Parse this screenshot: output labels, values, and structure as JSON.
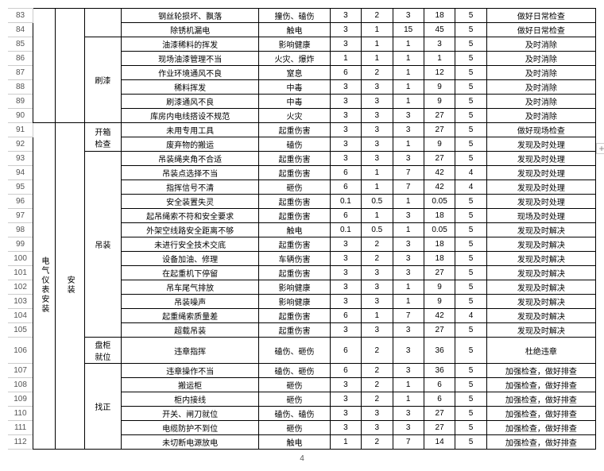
{
  "footer": "4",
  "plus": "+",
  "group1_label": "刷漆",
  "group2_main": "电气仪表安装",
  "group2_sub": "安装",
  "sub_kxjc": "开箱\n检查",
  "sub_dz": "吊装",
  "sub_pgjw": "盘柜\n就位",
  "sub_zz": "找正",
  "rows": [
    {
      "n": "83",
      "c2": "",
      "c3": "",
      "c4": "",
      "d": "钢丝轮损坏、飘落",
      "e": "撞伤、磕伤",
      "v": [
        "3",
        "2",
        "3",
        "18",
        "5"
      ],
      "a": "做好日常检查"
    },
    {
      "n": "84",
      "c2": "",
      "c3": "",
      "c4": "",
      "d": "除锈机漏电",
      "e": "触电",
      "v": [
        "3",
        "1",
        "15",
        "45",
        "5"
      ],
      "a": "做好日常检查"
    },
    {
      "n": "85",
      "c2": "",
      "c3": "",
      "c4": "",
      "d": "油漆稀料的挥发",
      "e": "影响健康",
      "v": [
        "3",
        "1",
        "1",
        "3",
        "5"
      ],
      "a": "及时消除"
    },
    {
      "n": "86",
      "c2": "",
      "c3": "",
      "c4": "",
      "d": "现场油漆管理不当",
      "e": "火灾、爆炸",
      "v": [
        "1",
        "1",
        "1",
        "1",
        "5"
      ],
      "a": "及时消除"
    },
    {
      "n": "87",
      "c2": "",
      "c3": "",
      "c4": "",
      "d": "作业环境通风不良",
      "e": "窒息",
      "v": [
        "6",
        "2",
        "1",
        "12",
        "5"
      ],
      "a": "及时消除"
    },
    {
      "n": "88",
      "c2": "",
      "c3": "",
      "c4": "",
      "d": "稀料挥发",
      "e": "中毒",
      "v": [
        "3",
        "3",
        "1",
        "9",
        "5"
      ],
      "a": "及时消除"
    },
    {
      "n": "89",
      "c2": "",
      "c3": "",
      "c4": "",
      "d": "刷漆通风不良",
      "e": "中毒",
      "v": [
        "3",
        "3",
        "1",
        "9",
        "5"
      ],
      "a": "及时消除"
    },
    {
      "n": "90",
      "c2": "",
      "c3": "",
      "c4": "",
      "d": "库房内电线搭设不规范",
      "e": "火灾",
      "v": [
        "3",
        "3",
        "3",
        "27",
        "5"
      ],
      "a": "及时消除"
    },
    {
      "n": "91",
      "c2": "",
      "c3": "",
      "c4": "",
      "d": "未用专用工具",
      "e": "起重伤害",
      "v": [
        "3",
        "3",
        "3",
        "27",
        "5"
      ],
      "a": "做好现场检查"
    },
    {
      "n": "92",
      "c2": "",
      "c3": "",
      "c4": "",
      "d": "废弃物的搬运",
      "e": "磕伤",
      "v": [
        "3",
        "3",
        "1",
        "9",
        "5"
      ],
      "a": "发现及时处理"
    },
    {
      "n": "93",
      "c2": "",
      "c3": "",
      "c4": "",
      "d": "吊装绳夹角不合适",
      "e": "起重伤害",
      "v": [
        "3",
        "3",
        "3",
        "27",
        "5"
      ],
      "a": "发现及时处理"
    },
    {
      "n": "94",
      "c2": "",
      "c3": "",
      "c4": "",
      "d": "吊装点选择不当",
      "e": "起重伤害",
      "v": [
        "6",
        "1",
        "7",
        "42",
        "4"
      ],
      "a": "发现及时处理"
    },
    {
      "n": "95",
      "c2": "",
      "c3": "",
      "c4": "",
      "d": "指挥信号不清",
      "e": "砸伤",
      "v": [
        "6",
        "1",
        "7",
        "42",
        "4"
      ],
      "a": "发现及时处理"
    },
    {
      "n": "96",
      "c2": "",
      "c3": "",
      "c4": "",
      "d": "安全装置失灵",
      "e": "起重伤害",
      "v": [
        "0.1",
        "0.5",
        "1",
        "0.05",
        "5"
      ],
      "a": "发现及时处理"
    },
    {
      "n": "97",
      "c2": "",
      "c3": "",
      "c4": "",
      "d": "起吊绳索不符和安全要求",
      "e": "起重伤害",
      "v": [
        "6",
        "1",
        "3",
        "18",
        "5"
      ],
      "a": "现场及时处理"
    },
    {
      "n": "98",
      "c2": "",
      "c3": "",
      "c4": "",
      "d": "外架空线路安全距离不够",
      "e": "触电",
      "v": [
        "0.1",
        "0.5",
        "1",
        "0.05",
        "5"
      ],
      "a": "发现及时解决"
    },
    {
      "n": "99",
      "c2": "",
      "c3": "",
      "c4": "",
      "d": "未进行安全技术交底",
      "e": "起重伤害",
      "v": [
        "3",
        "2",
        "3",
        "18",
        "5"
      ],
      "a": "发现及时解决"
    },
    {
      "n": "100",
      "c2": "",
      "c3": "",
      "c4": "",
      "d": "设备加油、修理",
      "e": "车辆伤害",
      "v": [
        "3",
        "2",
        "3",
        "18",
        "5"
      ],
      "a": "发现及时解决"
    },
    {
      "n": "101",
      "c2": "",
      "c3": "",
      "c4": "",
      "d": "在起重机下停留",
      "e": "起重伤害",
      "v": [
        "3",
        "3",
        "3",
        "27",
        "5"
      ],
      "a": "发现及时解决"
    },
    {
      "n": "102",
      "c2": "",
      "c3": "",
      "c4": "",
      "d": "吊车尾气排放",
      "e": "影响健康",
      "v": [
        "3",
        "3",
        "1",
        "9",
        "5"
      ],
      "a": "发现及时解决"
    },
    {
      "n": "103",
      "c2": "",
      "c3": "",
      "c4": "",
      "d": "吊装噪声",
      "e": "影响健康",
      "v": [
        "3",
        "3",
        "1",
        "9",
        "5"
      ],
      "a": "发现及时解决"
    },
    {
      "n": "104",
      "c2": "",
      "c3": "",
      "c4": "",
      "d": "起重绳索质量差",
      "e": "起重伤害",
      "v": [
        "6",
        "1",
        "7",
        "42",
        "4"
      ],
      "a": "发现及时解决"
    },
    {
      "n": "105",
      "c2": "",
      "c3": "",
      "c4": "",
      "d": "超载吊装",
      "e": "起重伤害",
      "v": [
        "3",
        "3",
        "3",
        "27",
        "5"
      ],
      "a": "发现及时解决"
    },
    {
      "n": "106",
      "c2": "",
      "c3": "",
      "c4": "",
      "d": "违章指挥",
      "e": "磕伤、砸伤",
      "v": [
        "6",
        "2",
        "3",
        "36",
        "5"
      ],
      "a": "杜绝违章"
    },
    {
      "n": "107",
      "c2": "",
      "c3": "",
      "c4": "",
      "d": "违章操作不当",
      "e": "磕伤、砸伤",
      "v": [
        "6",
        "2",
        "3",
        "36",
        "5"
      ],
      "a": "加强检查，做好排查"
    },
    {
      "n": "108",
      "c2": "",
      "c3": "",
      "c4": "",
      "d": "搬运柜",
      "e": "砸伤",
      "v": [
        "3",
        "2",
        "1",
        "6",
        "5"
      ],
      "a": "加强检查，做好排查"
    },
    {
      "n": "109",
      "c2": "",
      "c3": "",
      "c4": "",
      "d": "柜内接线",
      "e": "砸伤",
      "v": [
        "3",
        "2",
        "1",
        "6",
        "5"
      ],
      "a": "加强检查，做好排查"
    },
    {
      "n": "110",
      "c2": "",
      "c3": "",
      "c4": "",
      "d": "开关、闸刀就位",
      "e": "磕伤、磕伤",
      "v": [
        "3",
        "3",
        "3",
        "27",
        "5"
      ],
      "a": "加强检查，做好排查"
    },
    {
      "n": "111",
      "c2": "",
      "c3": "",
      "c4": "",
      "d": "电缆防护不到位",
      "e": "砸伤",
      "v": [
        "3",
        "3",
        "3",
        "27",
        "5"
      ],
      "a": "加强检查，做好排查"
    },
    {
      "n": "112",
      "c2": "",
      "c3": "",
      "c4": "",
      "d": "未切断电源放电",
      "e": "触电",
      "v": [
        "1",
        "2",
        "7",
        "14",
        "5"
      ],
      "a": "加强检查，做好排查"
    }
  ]
}
